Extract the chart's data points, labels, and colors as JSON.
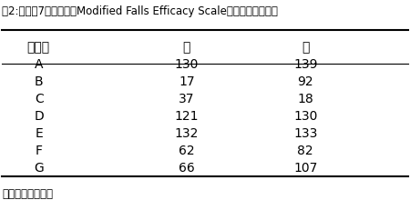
{
  "title": "表2:対象者7名におけるModified Falls Efficacy Scaleの介入前後の比較",
  "col_headers": [
    "対象者",
    "前",
    "後"
  ],
  "rows": [
    [
      "A",
      "130",
      "139"
    ],
    [
      "B",
      "17",
      "92"
    ],
    [
      "C",
      "37",
      "18"
    ],
    [
      "D",
      "121",
      "130"
    ],
    [
      "E",
      "132",
      "133"
    ],
    [
      "F",
      "62",
      "82"
    ],
    [
      "G",
      "66",
      "107"
    ]
  ],
  "footnote": "数値は点数を表示",
  "title_fontsize": 8.5,
  "header_fontsize": 10,
  "data_fontsize": 10,
  "footnote_fontsize": 8.5,
  "bg_color": "#ffffff",
  "text_color": "#000000"
}
